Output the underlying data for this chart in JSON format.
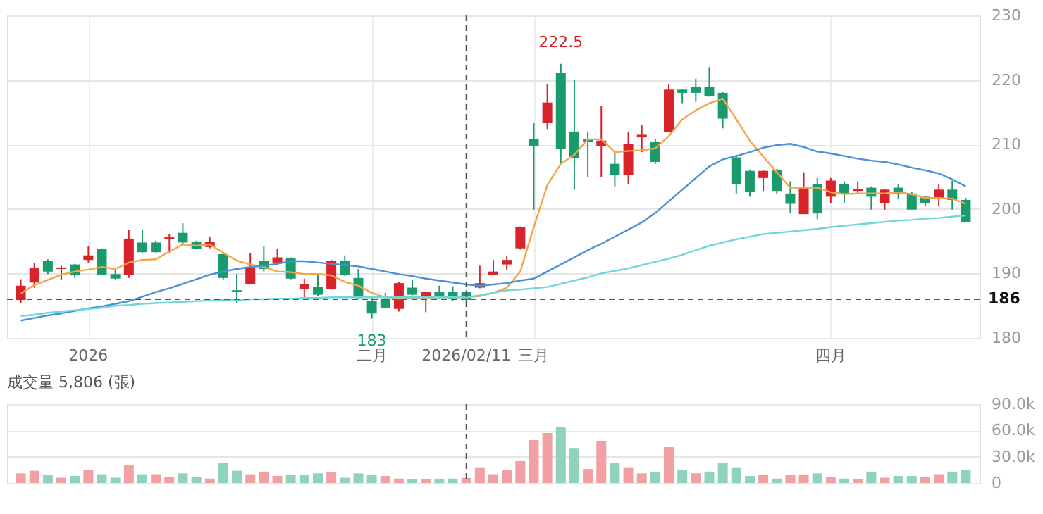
{
  "chart_data": [
    {
      "type": "candlestick",
      "categories": [
        null,
        null,
        null,
        null,
        null,
        "2026",
        null,
        null,
        null,
        null,
        null,
        null,
        null,
        null,
        null,
        null,
        null,
        null,
        null,
        null,
        null,
        null,
        null,
        null,
        null,
        null,
        "二月",
        null,
        null,
        null,
        null,
        null,
        null,
        "2026/02/11",
        null,
        null,
        null,
        null,
        "三月",
        null,
        null,
        null,
        null,
        null,
        null,
        null,
        null,
        null,
        null,
        null,
        null,
        null,
        null,
        null,
        null,
        null,
        null,
        null,
        null,
        null,
        "四月",
        null,
        null,
        null,
        null,
        null,
        null,
        null,
        null,
        null,
        null
      ],
      "ohlc": [
        [
          185.9,
          189.1,
          185.4,
          188.1
        ],
        [
          188.6,
          191.7,
          187.8,
          190.8
        ],
        [
          191.9,
          192.2,
          189.9,
          190.3
        ],
        [
          190.7,
          191.2,
          189.0,
          190.9
        ],
        [
          191.4,
          191.5,
          189.3,
          189.7
        ],
        [
          192.1,
          194.3,
          191.7,
          192.8
        ],
        [
          193.8,
          193.9,
          189.7,
          189.8
        ],
        [
          189.9,
          190.7,
          189.1,
          189.2
        ],
        [
          189.8,
          196.8,
          189.3,
          195.4
        ],
        [
          194.8,
          196.7,
          193.2,
          193.3
        ],
        [
          194.8,
          195.1,
          193.2,
          193.3
        ],
        [
          195.3,
          196.1,
          193.2,
          195.6
        ],
        [
          196.3,
          197.8,
          194.5,
          194.8
        ],
        [
          194.9,
          195.1,
          193.7,
          193.8
        ],
        [
          194.1,
          195.7,
          193.9,
          194.9
        ],
        [
          193.0,
          193.3,
          189.1,
          189.3
        ],
        [
          187.4,
          189.9,
          185.4,
          187.2
        ],
        [
          188.4,
          193.2,
          188.3,
          190.9
        ],
        [
          191.9,
          194.3,
          190.3,
          190.7
        ],
        [
          191.7,
          193.8,
          191.4,
          192.5
        ],
        [
          192.4,
          192.5,
          189.1,
          189.2
        ],
        [
          187.6,
          189.2,
          186.3,
          188.4
        ],
        [
          187.9,
          189.9,
          186.5,
          186.7
        ],
        [
          187.6,
          192.1,
          187.5,
          191.9
        ],
        [
          191.9,
          192.8,
          189.6,
          189.8
        ],
        [
          189.3,
          190.7,
          186.0,
          186.2
        ],
        [
          185.7,
          186.3,
          183,
          183.8
        ],
        [
          186.1,
          187.0,
          184.6,
          184.7
        ],
        [
          184.5,
          188.7,
          184.1,
          188.5
        ],
        [
          187.8,
          189.0,
          186.6,
          186.7
        ],
        [
          186.3,
          187.2,
          184.0,
          187.2
        ],
        [
          187.2,
          188.1,
          186.1,
          186.2
        ],
        [
          187.2,
          188.0,
          185.8,
          186.0
        ],
        [
          187.2,
          187.4,
          185.8,
          185.9
        ],
        [
          187.8,
          191.2,
          187.7,
          188.5
        ],
        [
          189.8,
          192.1,
          189.7,
          190.3
        ],
        [
          191.4,
          192.8,
          190.5,
          192.1
        ],
        [
          193.9,
          197.3,
          193.7,
          197.2
        ],
        [
          210.9,
          213.3,
          199.9,
          209.8
        ],
        [
          213.3,
          219.3,
          212.4,
          216.5
        ],
        [
          221.1,
          222.5,
          207.0,
          209.3
        ],
        [
          212.0,
          220.0,
          203.0,
          207.9
        ],
        [
          210.9,
          212.0,
          205.0,
          210.4
        ],
        [
          209.8,
          216.0,
          205.0,
          210.6
        ],
        [
          207.0,
          208.8,
          203.5,
          205.3
        ],
        [
          205.3,
          212.0,
          203.9,
          210.1
        ],
        [
          211.1,
          213.0,
          208.8,
          211.5
        ],
        [
          210.4,
          210.8,
          207.0,
          207.3
        ],
        [
          211.9,
          219.3,
          211.9,
          218.5
        ],
        [
          218.5,
          218.6,
          216.4,
          218.0
        ],
        [
          218.9,
          220.2,
          216.6,
          218.0
        ],
        [
          218.9,
          222.0,
          217.4,
          217.5
        ],
        [
          218.0,
          218.1,
          212.5,
          214.0
        ],
        [
          208.0,
          208.4,
          202.4,
          203.8
        ],
        [
          205.9,
          206.0,
          201.9,
          202.6
        ],
        [
          204.8,
          206.0,
          202.8,
          205.9
        ],
        [
          206.0,
          206.2,
          202.4,
          202.8
        ],
        [
          202.4,
          204.3,
          199.3,
          200.8
        ],
        [
          199.2,
          205.7,
          199.2,
          203.3
        ],
        [
          203.8,
          204.8,
          198.4,
          199.3
        ],
        [
          201.9,
          204.8,
          200.9,
          204.4
        ],
        [
          203.8,
          204.3,
          200.9,
          202.4
        ],
        [
          202.8,
          204.3,
          202.4,
          203.1
        ],
        [
          203.3,
          203.5,
          199.9,
          201.9
        ],
        [
          200.9,
          203.1,
          199.9,
          203.0
        ],
        [
          203.3,
          203.8,
          201.5,
          202.4
        ],
        [
          202.4,
          202.6,
          199.9,
          199.9
        ],
        [
          201.9,
          202.0,
          200.4,
          200.9
        ],
        [
          201.7,
          203.8,
          200.4,
          203.0
        ],
        [
          203.0,
          204.4,
          199.9,
          201.4
        ],
        [
          201.4,
          201.7,
          197.9,
          197.9
        ]
      ],
      "colors": [
        "#d8232a",
        "#d8232a",
        "#1a9b6c",
        "#d8232a",
        "#1a9b6c",
        "#d8232a",
        "#1a9b6c",
        "#1a9b6c",
        "#d8232a",
        "#1a9b6c",
        "#1a9b6c",
        "#d8232a",
        "#1a9b6c",
        "#1a9b6c",
        "#d8232a",
        "#1a9b6c",
        "#1a9b6c",
        "#d8232a",
        "#1a9b6c",
        "#d8232a",
        "#1a9b6c",
        "#d8232a",
        "#1a9b6c",
        "#d8232a",
        "#1a9b6c",
        "#1a9b6c",
        "#1a9b6c",
        "#1a9b6c",
        "#d8232a",
        "#1a9b6c",
        "#d8232a",
        "#1a9b6c",
        "#1a9b6c",
        "#1a9b6c",
        "#d8232a",
        "#d8232a",
        "#d8232a",
        "#d8232a",
        "#1a9b6c",
        "#d8232a",
        "#1a9b6c",
        "#1a9b6c",
        "#1a9b6c",
        "#d8232a",
        "#1a9b6c",
        "#d8232a",
        "#d8232a",
        "#1a9b6c",
        "#d8232a",
        "#1a9b6c",
        "#1a9b6c",
        "#1a9b6c",
        "#1a9b6c",
        "#1a9b6c",
        "#1a9b6c",
        "#d8232a",
        "#1a9b6c",
        "#1a9b6c",
        "#d8232a",
        "#1a9b6c",
        "#d8232a",
        "#1a9b6c",
        "#d8232a",
        "#1a9b6c",
        "#d8232a",
        "#1a9b6c",
        "#1a9b6c",
        "#1a9b6c",
        "#d8232a",
        "#1a9b6c",
        "#1a9b6c"
      ],
      "series": [
        {
          "type": "line",
          "color": "#f5a44a",
          "values": [
            186.9,
            188.2,
            189.0,
            189.8,
            190.3,
            190.6,
            191.0,
            190.7,
            191.7,
            192.1,
            192.2,
            193.4,
            194.5,
            194.3,
            194.5,
            193.2,
            192.0,
            191.4,
            191.0,
            190.3,
            190.2,
            189.9,
            189.9,
            189.7,
            188.7,
            188.1,
            187.0,
            186.3,
            186.1,
            186.1,
            186.2,
            186.3,
            186.3,
            186.3,
            186.5,
            187.0,
            187.8,
            190.3,
            197.2,
            203.7,
            207.0,
            208.4,
            210.8,
            210.8,
            208.8,
            209.0,
            209.1,
            209.4,
            211.3,
            213.9,
            215.3,
            216.4,
            217.1,
            213.9,
            210.6,
            208.1,
            205.7,
            203.3,
            203.3,
            203.3,
            202.6,
            202.3,
            202.4,
            202.4,
            202.4,
            202.6,
            202.3,
            201.7,
            201.7,
            201.6,
            200.8
          ]
        },
        {
          "type": "line",
          "color": "#4a90d9",
          "values": [
            182.7,
            183.1,
            183.5,
            183.8,
            184.2,
            184.6,
            184.9,
            185.3,
            185.7,
            186.4,
            187.1,
            187.7,
            188.4,
            189.1,
            189.8,
            190.3,
            190.7,
            191.0,
            191.2,
            191.5,
            191.9,
            191.9,
            191.7,
            191.5,
            191.3,
            191.1,
            190.7,
            190.3,
            189.9,
            189.6,
            189.2,
            188.9,
            188.6,
            188.3,
            188.1,
            188.3,
            188.5,
            188.9,
            189.2,
            190.3,
            191.4,
            192.5,
            193.6,
            194.6,
            195.7,
            196.8,
            197.9,
            199.4,
            201.2,
            203.0,
            204.8,
            206.6,
            207.7,
            208.2,
            208.8,
            209.5,
            209.9,
            210.1,
            209.6,
            208.9,
            208.6,
            208.2,
            207.8,
            207.5,
            207.3,
            206.9,
            206.4,
            206.0,
            205.5,
            204.6,
            203.5
          ]
        },
        {
          "type": "line",
          "color": "#6fd6e0",
          "values": [
            183.4,
            183.6,
            183.9,
            184.1,
            184.3,
            184.5,
            184.7,
            185.0,
            185.1,
            185.3,
            185.4,
            185.5,
            185.6,
            185.7,
            185.8,
            185.9,
            185.9,
            186.0,
            186.0,
            186.1,
            186.1,
            186.2,
            186.2,
            186.3,
            186.3,
            186.3,
            186.3,
            186.3,
            186.3,
            186.3,
            186.3,
            186.3,
            186.3,
            186.3,
            186.6,
            187.0,
            187.4,
            187.5,
            187.7,
            187.9,
            188.4,
            188.9,
            189.4,
            190.0,
            190.4,
            190.8,
            191.3,
            191.8,
            192.3,
            192.9,
            193.6,
            194.3,
            194.8,
            195.3,
            195.7,
            196.1,
            196.3,
            196.5,
            196.7,
            196.9,
            197.2,
            197.4,
            197.6,
            197.8,
            198.0,
            198.2,
            198.3,
            198.5,
            198.6,
            198.8,
            199.0
          ]
        }
      ],
      "ylim": [
        180,
        230
      ],
      "yticks": [
        180,
        190,
        200,
        210,
        220,
        230
      ],
      "grid": true,
      "ref_lines": [
        {
          "axis": "x",
          "value": "2026/02/11",
          "line_style": "dashed",
          "color": "#555555"
        },
        {
          "axis": "y",
          "value": 186,
          "label": "186",
          "line_style": "dashed",
          "color": "#555555"
        }
      ],
      "annotations": [
        {
          "text": "222.5",
          "y": 222.5
        },
        {
          "text": "183",
          "y": 183
        }
      ]
    },
    {
      "type": "bar",
      "title": "成交量 5,806 (張)",
      "categories": [
        null,
        null,
        null,
        null,
        null,
        null,
        null,
        null,
        null,
        null,
        null,
        null,
        null,
        null,
        null,
        null,
        null,
        null,
        null,
        null,
        null,
        null,
        null,
        null,
        null,
        null,
        null,
        null,
        null,
        null,
        null,
        null,
        null,
        null,
        null,
        null,
        null,
        null,
        null,
        null,
        null,
        null,
        null,
        null,
        null,
        null,
        null,
        null,
        null,
        null,
        null,
        null,
        null,
        null,
        null,
        null,
        null,
        null,
        null,
        null,
        null,
        null,
        null,
        null,
        null,
        null,
        null,
        null,
        null,
        null,
        null
      ],
      "tick_labels": "y",
      "values": [
        11000,
        14000,
        9000,
        6000,
        8000,
        15000,
        10000,
        6000,
        20000,
        10000,
        10000,
        7000,
        11000,
        7000,
        5000,
        23000,
        14000,
        10000,
        13000,
        8000,
        9000,
        9000,
        11000,
        12000,
        6000,
        11000,
        9000,
        8000,
        5000,
        4000,
        4000,
        4000,
        5000,
        5806,
        18000,
        10000,
        15000,
        25000,
        49000,
        57000,
        64000,
        40000,
        16000,
        48000,
        23000,
        18000,
        11000,
        13000,
        41000,
        15000,
        11000,
        13000,
        23000,
        18000,
        8000,
        9000,
        5000,
        9000,
        9000,
        11000,
        7000,
        5000,
        4000,
        13000,
        6000,
        8000,
        8000,
        7000,
        10000,
        13000,
        15000
      ],
      "colors": [
        "#f2a0a4",
        "#f2a0a4",
        "#8fd3bd",
        "#f2a0a4",
        "#8fd3bd",
        "#f2a0a4",
        "#8fd3bd",
        "#8fd3bd",
        "#f2a0a4",
        "#8fd3bd",
        "#f2a0a4",
        "#f2a0a4",
        "#8fd3bd",
        "#8fd3bd",
        "#f2a0a4",
        "#8fd3bd",
        "#8fd3bd",
        "#f2a0a4",
        "#f2a0a4",
        "#f2a0a4",
        "#8fd3bd",
        "#8fd3bd",
        "#8fd3bd",
        "#f2a0a4",
        "#8fd3bd",
        "#8fd3bd",
        "#8fd3bd",
        "#f2a0a4",
        "#f2a0a4",
        "#8fd3bd",
        "#f2a0a4",
        "#8fd3bd",
        "#8fd3bd",
        "#f2a0a4",
        "#f2a0a4",
        "#f2a0a4",
        "#f2a0a4",
        "#f2a0a4",
        "#f2a0a4",
        "#f2a0a4",
        "#8fd3bd",
        "#8fd3bd",
        "#f2a0a4",
        "#f2a0a4",
        "#8fd3bd",
        "#f2a0a4",
        "#f2a0a4",
        "#8fd3bd",
        "#f2a0a4",
        "#8fd3bd",
        "#f2a0a4",
        "#8fd3bd",
        "#8fd3bd",
        "#8fd3bd",
        "#8fd3bd",
        "#f2a0a4",
        "#8fd3bd",
        "#f2a0a4",
        "#f2a0a4",
        "#8fd3bd",
        "#f2a0a4",
        "#8fd3bd",
        "#f2a0a4",
        "#8fd3bd",
        "#f2a0a4",
        "#8fd3bd",
        "#8fd3bd",
        "#f2a0a4",
        "#f2a0a4",
        "#8fd3bd",
        "#8fd3bd"
      ],
      "ylim": [
        0,
        90000
      ],
      "yticks": [
        0,
        {
          "value": 30000,
          "label": "30.0k"
        },
        {
          "value": 60000,
          "label": "60.0k"
        },
        {
          "value": 90000,
          "label": "90.0k"
        }
      ],
      "grid": "y"
    }
  ]
}
